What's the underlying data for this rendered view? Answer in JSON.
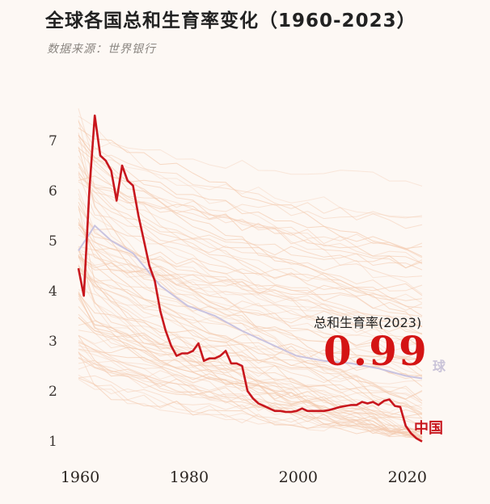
{
  "title": "全球各国总和生育率变化（1960-2023）",
  "subtitle": "数据来源：世界银行",
  "callout": {
    "label": "总和生育率(2023)",
    "value": "0.99",
    "hidden_label": "球"
  },
  "colors": {
    "china": "#c8161d",
    "world": "#c9c3e0",
    "countries": "#f3c9ad",
    "background": "#fdf8f4"
  },
  "chart_data": {
    "type": "line",
    "title": "全球各国总和生育率变化（1960-2023）",
    "subtitle": "数据来源：世界银行",
    "xlabel": "",
    "ylabel": "",
    "xlim": [
      1960,
      2023
    ],
    "ylim": [
      1,
      7.5
    ],
    "x_ticks": [
      1960,
      1980,
      2000,
      2020
    ],
    "y_ticks": [
      1,
      2,
      3,
      4,
      5,
      6,
      7
    ],
    "grid": false,
    "background_lines": "many faint country series",
    "series": [
      {
        "name": "中国",
        "points": [
          [
            1960,
            4.45
          ],
          [
            1961,
            3.9
          ],
          [
            1962,
            6.0
          ],
          [
            1963,
            7.5
          ],
          [
            1964,
            6.7
          ],
          [
            1965,
            6.6
          ],
          [
            1966,
            6.4
          ],
          [
            1967,
            5.8
          ],
          [
            1968,
            6.5
          ],
          [
            1969,
            6.2
          ],
          [
            1970,
            6.1
          ],
          [
            1971,
            5.5
          ],
          [
            1972,
            5.0
          ],
          [
            1973,
            4.5
          ],
          [
            1974,
            4.2
          ],
          [
            1975,
            3.6
          ],
          [
            1976,
            3.2
          ],
          [
            1977,
            2.9
          ],
          [
            1978,
            2.7
          ],
          [
            1979,
            2.75
          ],
          [
            1980,
            2.75
          ],
          [
            1981,
            2.8
          ],
          [
            1982,
            2.95
          ],
          [
            1983,
            2.6
          ],
          [
            1984,
            2.65
          ],
          [
            1985,
            2.65
          ],
          [
            1986,
            2.7
          ],
          [
            1987,
            2.8
          ],
          [
            1988,
            2.55
          ],
          [
            1989,
            2.55
          ],
          [
            1990,
            2.5
          ],
          [
            1991,
            2.0
          ],
          [
            1992,
            1.85
          ],
          [
            1993,
            1.75
          ],
          [
            1994,
            1.7
          ],
          [
            1995,
            1.65
          ],
          [
            1996,
            1.6
          ],
          [
            1997,
            1.6
          ],
          [
            1998,
            1.58
          ],
          [
            1999,
            1.58
          ],
          [
            2000,
            1.6
          ],
          [
            2001,
            1.65
          ],
          [
            2002,
            1.6
          ],
          [
            2003,
            1.6
          ],
          [
            2004,
            1.6
          ],
          [
            2005,
            1.6
          ],
          [
            2006,
            1.62
          ],
          [
            2007,
            1.65
          ],
          [
            2008,
            1.68
          ],
          [
            2009,
            1.7
          ],
          [
            2010,
            1.72
          ],
          [
            2011,
            1.72
          ],
          [
            2012,
            1.78
          ],
          [
            2013,
            1.75
          ],
          [
            2014,
            1.78
          ],
          [
            2015,
            1.72
          ],
          [
            2016,
            1.8
          ],
          [
            2017,
            1.83
          ],
          [
            2018,
            1.7
          ],
          [
            2019,
            1.68
          ],
          [
            2020,
            1.3
          ],
          [
            2021,
            1.15
          ],
          [
            2022,
            1.05
          ],
          [
            2023,
            0.99
          ]
        ]
      },
      {
        "points": [
          [
            1960,
            4.8
          ],
          [
            1963,
            5.3
          ],
          [
            1966,
            5.0
          ],
          [
            1970,
            4.75
          ],
          [
            1975,
            4.1
          ],
          [
            1980,
            3.7
          ],
          [
            1985,
            3.5
          ],
          [
            1990,
            3.2
          ],
          [
            1995,
            2.95
          ],
          [
            2000,
            2.7
          ],
          [
            2005,
            2.6
          ],
          [
            2010,
            2.55
          ],
          [
            2015,
            2.45
          ],
          [
            2020,
            2.3
          ],
          [
            2023,
            2.25
          ]
        ]
      }
    ]
  }
}
